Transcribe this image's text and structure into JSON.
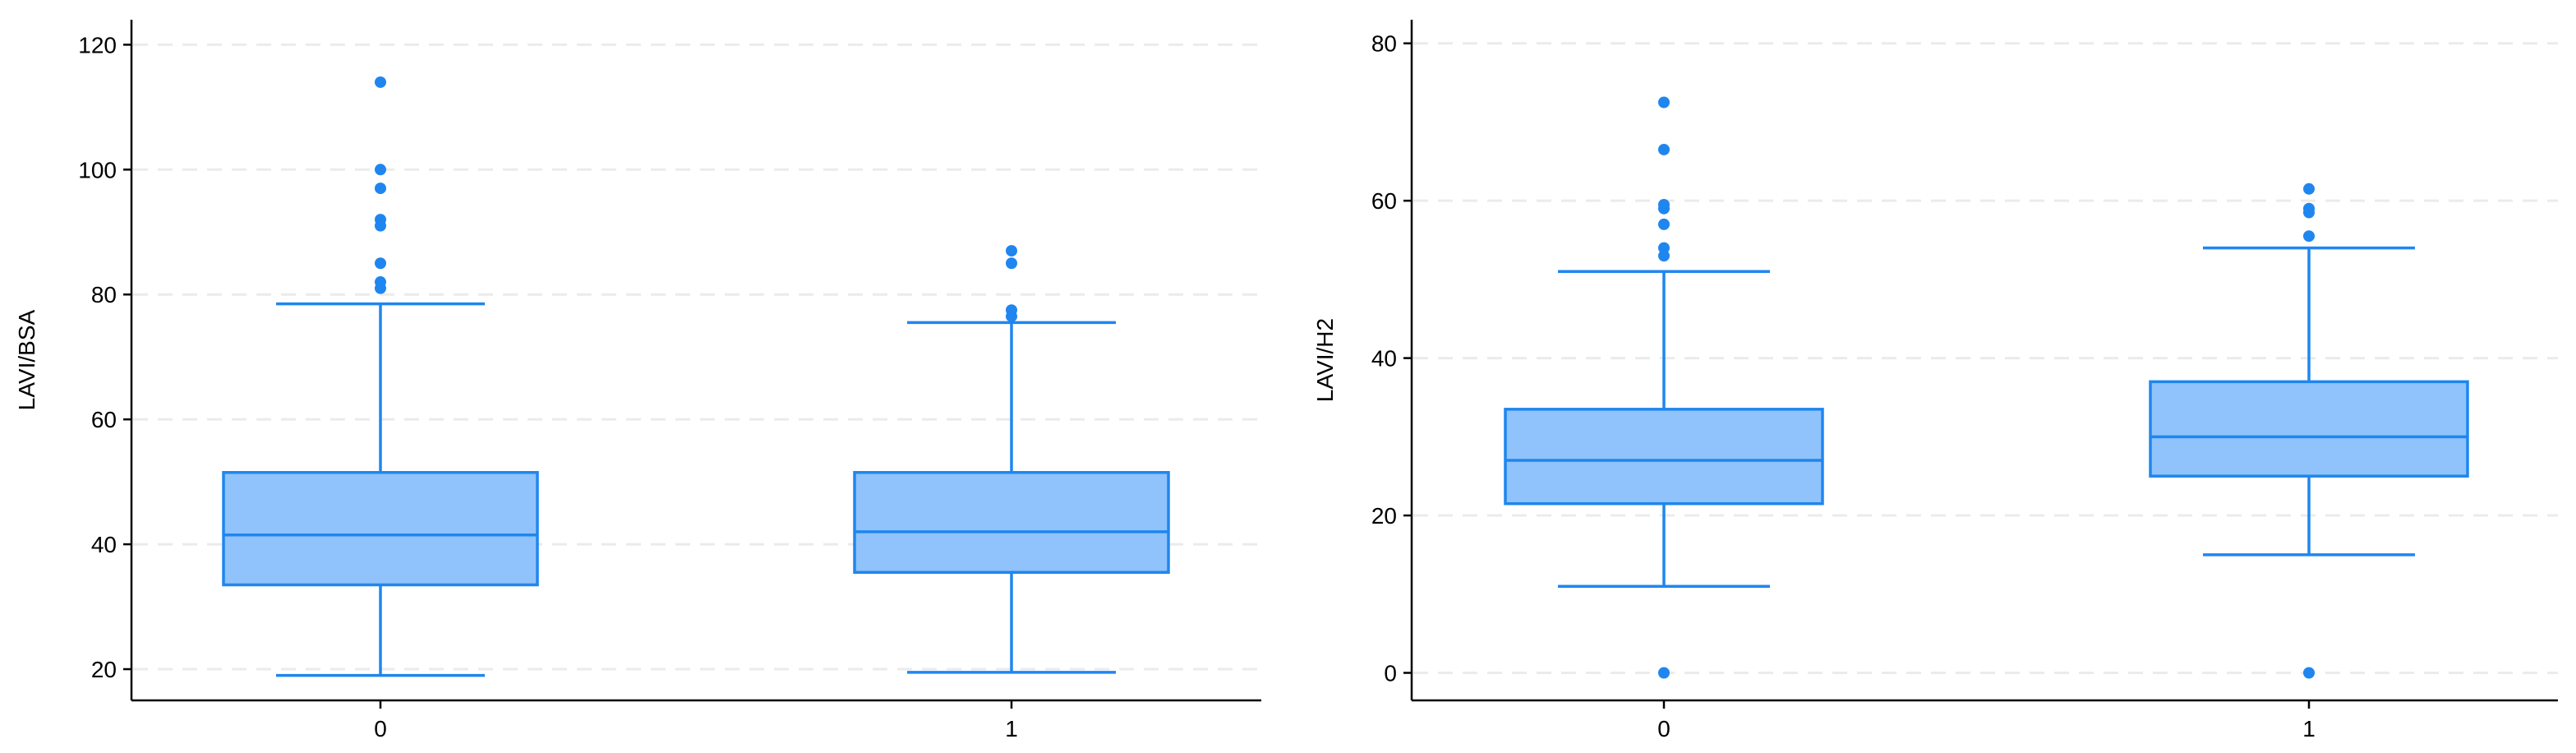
{
  "chart_data": [
    {
      "type": "box",
      "xlabel": "",
      "ylabel": "LAVI/BSA",
      "ylim": [
        15,
        124
      ],
      "yticks": [
        20,
        40,
        60,
        80,
        100,
        120
      ],
      "grid": true,
      "categories": [
        "0",
        "1"
      ],
      "boxes": [
        {
          "category": "0",
          "whisker_low": 19,
          "q1": 33.5,
          "median": 41.5,
          "q3": 51.5,
          "whisker_high": 78.5,
          "outliers": [
            81,
            82,
            85,
            91,
            92,
            97,
            100,
            114
          ]
        },
        {
          "category": "1",
          "whisker_low": 19.5,
          "q1": 35.5,
          "median": 42,
          "q3": 51.5,
          "whisker_high": 75.5,
          "outliers": [
            76.5,
            77.5,
            85,
            87
          ]
        }
      ]
    },
    {
      "type": "box",
      "xlabel": "",
      "ylabel": "LAVI/H2",
      "ylim": [
        -3.5,
        83
      ],
      "yticks": [
        0,
        20,
        40,
        60,
        80
      ],
      "grid": true,
      "categories": [
        "0",
        "1"
      ],
      "boxes": [
        {
          "category": "0",
          "whisker_low": 11,
          "q1": 21.5,
          "median": 27,
          "q3": 33.5,
          "whisker_high": 51,
          "outliers": [
            0,
            53,
            54,
            57,
            59,
            59.5,
            66.5,
            72.5
          ]
        },
        {
          "category": "1",
          "whisker_low": 15,
          "q1": 25,
          "median": 30,
          "q3": 37,
          "whisker_high": 54,
          "outliers": [
            0,
            55.5,
            58.5,
            59,
            61.5
          ]
        }
      ]
    }
  ],
  "colors": {
    "box_fill": "#90c3fb",
    "box_stroke": "#1f86ef",
    "outlier": "#1f86ef",
    "axis": "#000000",
    "grid": "#ebebeb"
  }
}
